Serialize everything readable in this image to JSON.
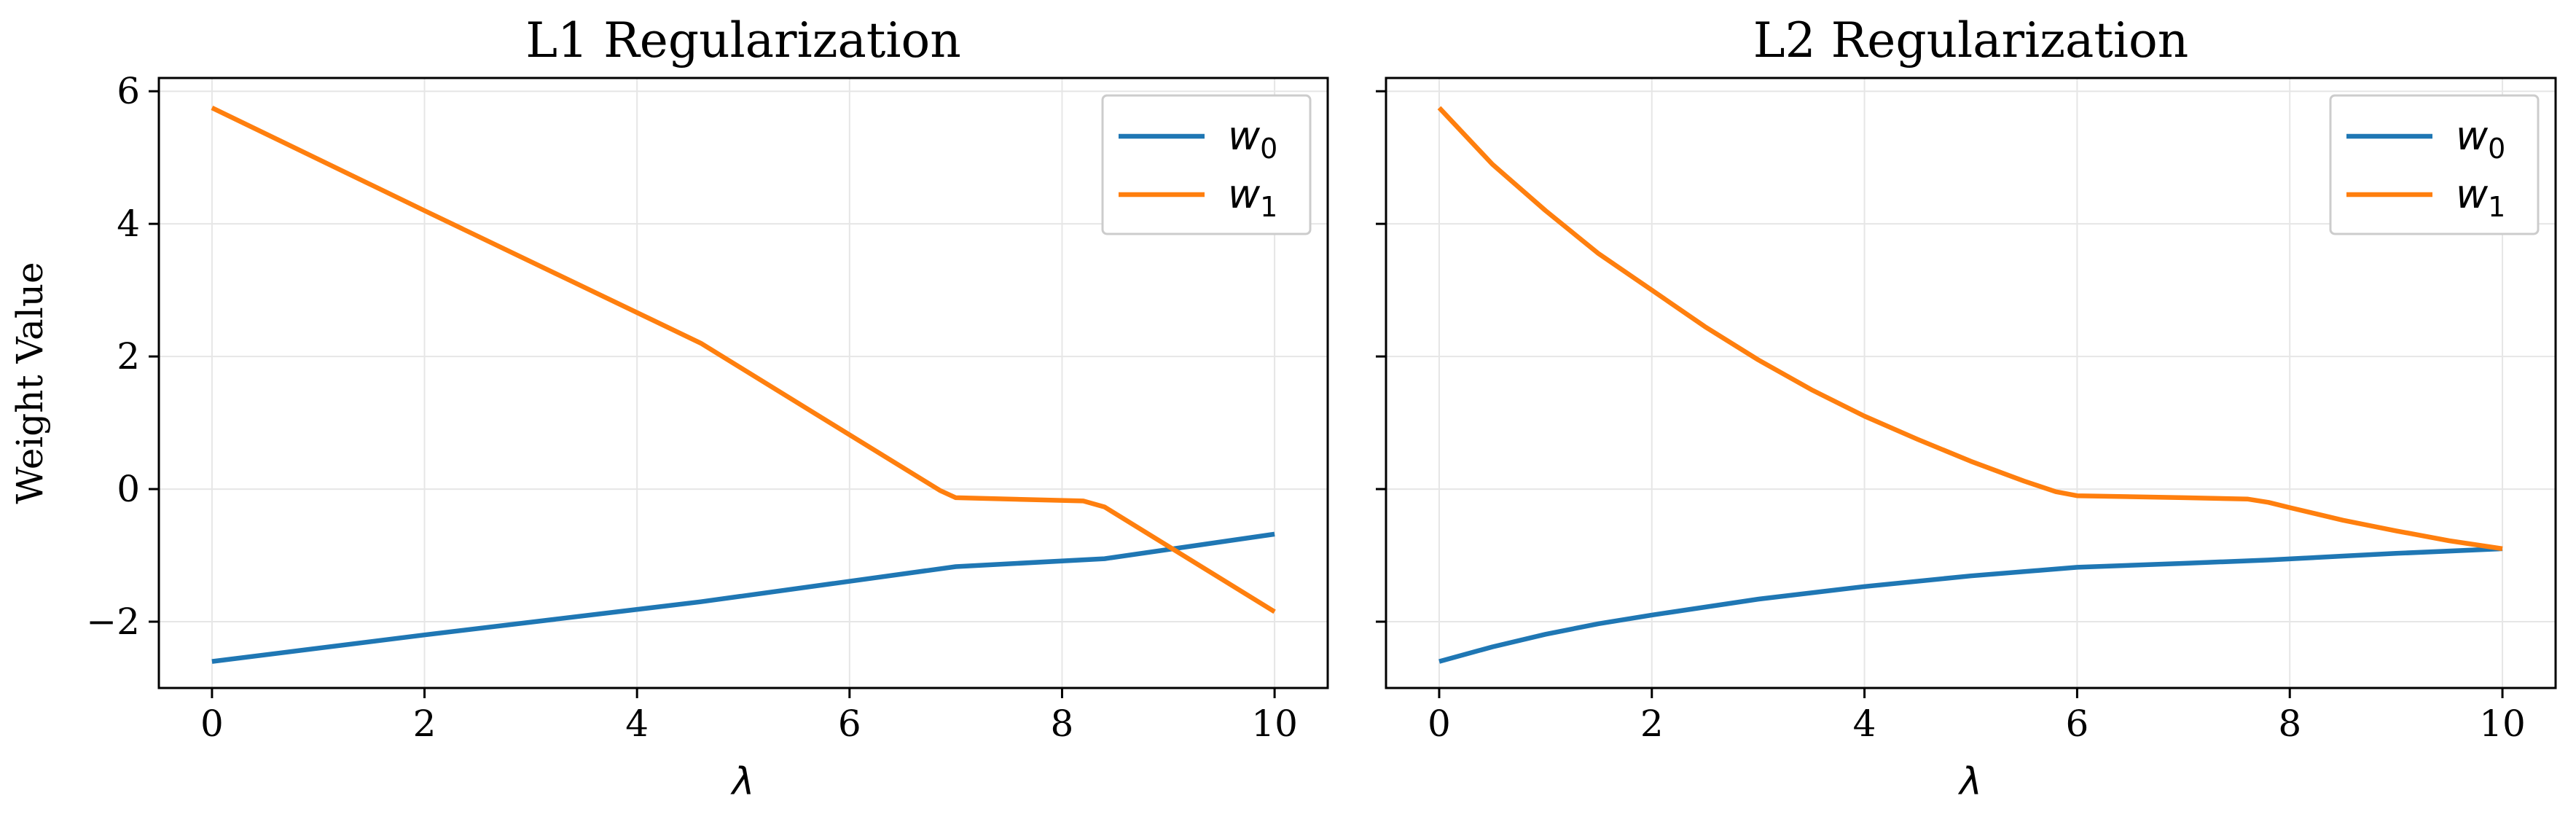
{
  "chart_data": [
    {
      "type": "line",
      "title": "L1 Regularization",
      "xlabel": "λ",
      "ylabel": "Weight Value",
      "xlim": [
        -0.5,
        10.5
      ],
      "ylim": [
        -3.0,
        6.2
      ],
      "xticks": [
        0,
        2,
        4,
        6,
        8,
        10
      ],
      "xtick_labels": [
        "0",
        "2",
        "4",
        "6",
        "8",
        "10"
      ],
      "yticks": [
        -2,
        0,
        2,
        4,
        6
      ],
      "ytick_labels": [
        "−2",
        "0",
        "2",
        "4",
        "6"
      ],
      "grid": true,
      "legend_position": "top-right",
      "series": [
        {
          "name": "w0",
          "label_base": "w",
          "label_sub": "0",
          "color": "#1f77b4",
          "x": [
            0,
            2,
            4.6,
            7,
            8.4,
            10
          ],
          "y": [
            -2.6,
            -2.2,
            -1.7,
            -1.17,
            -1.05,
            -0.68
          ]
        },
        {
          "name": "w1",
          "label_base": "w",
          "label_sub": "1",
          "color": "#ff7f0e",
          "x": [
            0,
            2,
            4.6,
            6.85,
            7,
            8.2,
            8.4,
            10
          ],
          "y": [
            5.75,
            4.2,
            2.2,
            -0.02,
            -0.13,
            -0.18,
            -0.27,
            -1.85
          ]
        }
      ]
    },
    {
      "type": "line",
      "title": "L2 Regularization",
      "xlabel": "λ",
      "ylabel": "",
      "xlim": [
        -0.5,
        10.5
      ],
      "ylim": [
        -3.0,
        6.2
      ],
      "xticks": [
        0,
        2,
        4,
        6,
        8,
        10
      ],
      "xtick_labels": [
        "0",
        "2",
        "4",
        "6",
        "8",
        "10"
      ],
      "yticks": [
        -2,
        0,
        2,
        4,
        6
      ],
      "ytick_labels": [
        "",
        "",
        "",
        "",
        ""
      ],
      "grid": true,
      "legend_position": "top-right",
      "series": [
        {
          "name": "w0",
          "label_base": "w",
          "label_sub": "0",
          "color": "#1f77b4",
          "x": [
            0,
            0.5,
            1,
            1.5,
            2,
            3,
            4,
            5,
            6,
            7,
            7.8,
            8.5,
            9,
            10
          ],
          "y": [
            -2.6,
            -2.38,
            -2.19,
            -2.03,
            -1.9,
            -1.66,
            -1.47,
            -1.31,
            -1.18,
            -1.12,
            -1.07,
            -1.01,
            -0.97,
            -0.9
          ]
        },
        {
          "name": "w1",
          "label_base": "w",
          "label_sub": "1",
          "color": "#ff7f0e",
          "x": [
            0,
            0.5,
            1,
            1.5,
            2,
            2.5,
            3,
            3.5,
            4,
            4.5,
            5,
            5.5,
            5.8,
            6,
            7,
            7.6,
            7.8,
            8,
            8.5,
            9,
            9.5,
            10
          ],
          "y": [
            5.75,
            4.9,
            4.2,
            3.55,
            3.0,
            2.45,
            1.95,
            1.5,
            1.1,
            0.75,
            0.42,
            0.12,
            -0.04,
            -0.1,
            -0.13,
            -0.15,
            -0.2,
            -0.28,
            -0.47,
            -0.63,
            -0.78,
            -0.9
          ]
        }
      ]
    }
  ]
}
